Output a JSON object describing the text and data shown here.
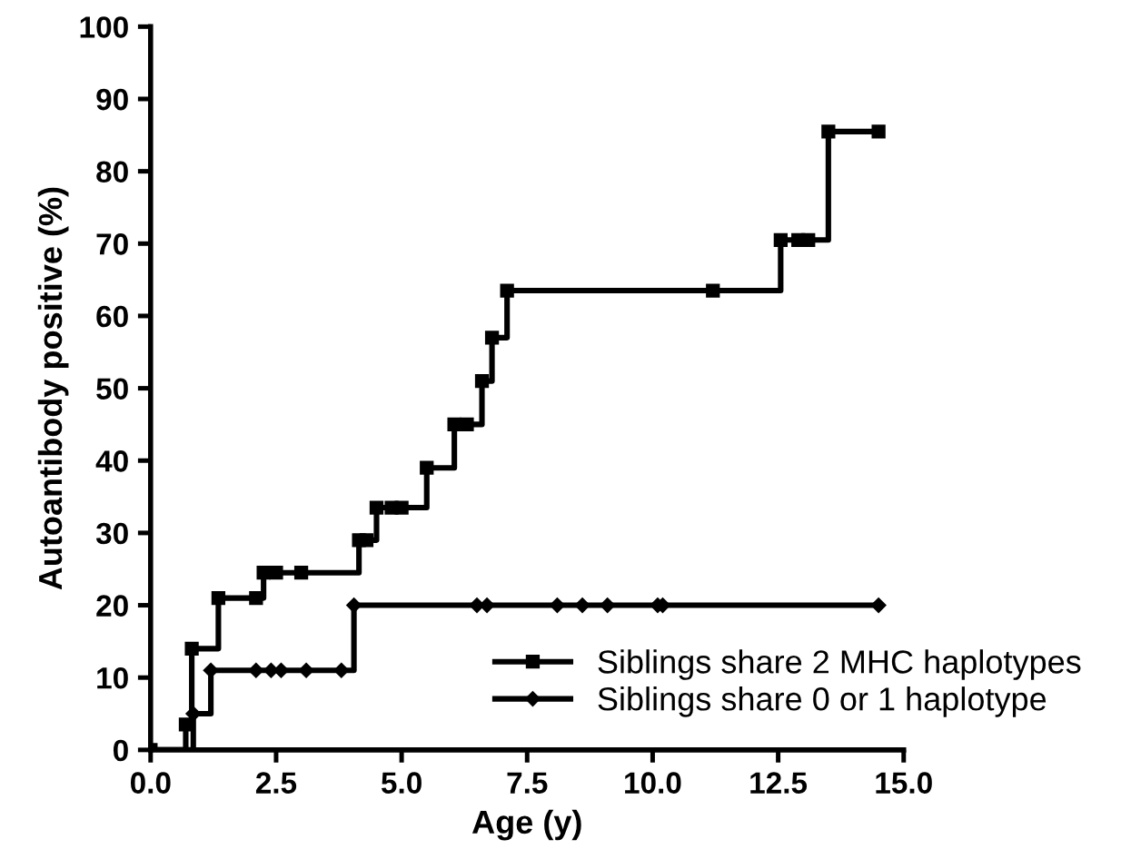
{
  "chart_data": {
    "type": "step",
    "xlabel": "Age (y)",
    "ylabel": "Autoantibody positive (%)",
    "xlim": [
      0,
      15
    ],
    "ylim": [
      0,
      100
    ],
    "xticks": [
      {
        "value": 0,
        "label": "0.0"
      },
      {
        "value": 2.5,
        "label": "2.5"
      },
      {
        "value": 5,
        "label": "5.0"
      },
      {
        "value": 7.5,
        "label": "7.5"
      },
      {
        "value": 10,
        "label": "10.0"
      },
      {
        "value": 12.5,
        "label": "12.5"
      },
      {
        "value": 15,
        "label": "15.0"
      }
    ],
    "yticks": [
      0,
      10,
      20,
      30,
      40,
      50,
      60,
      70,
      80,
      90,
      100
    ],
    "grid": false,
    "legend": "bottom right",
    "line_style": "solid",
    "series": [
      {
        "name": "Siblings share 2 MHC haplotypes",
        "color": "#000000",
        "marker": "square",
        "x": [
          0,
          0.7,
          0.82,
          1.35,
          2.1,
          2.25,
          2.5,
          3.0,
          4.15,
          4.3,
          4.5,
          4.8,
          5.0,
          5.5,
          6.05,
          6.3,
          6.6,
          6.8,
          7.1,
          11.2,
          12.55,
          12.9,
          13.1,
          13.5,
          14.5
        ],
        "values": [
          0,
          3.5,
          14,
          21,
          21,
          24.5,
          24.5,
          24.5,
          29,
          29,
          33.5,
          33.5,
          33.5,
          39,
          45,
          45,
          51,
          57,
          63.5,
          63.5,
          70.5,
          70.5,
          70.5,
          85.5,
          85.5
        ]
      },
      {
        "name": "Siblings share 0 or 1 haplotype",
        "color": "#000000",
        "marker": "diamond",
        "x": [
          0,
          0.85,
          1.2,
          2.1,
          2.4,
          2.6,
          3.1,
          3.8,
          4.05,
          6.5,
          6.7,
          8.1,
          8.6,
          9.1,
          10.1,
          10.2,
          14.5
        ],
        "values": [
          0,
          5,
          11,
          11,
          11,
          11,
          11,
          11,
          20,
          20,
          20,
          20,
          20,
          20,
          20,
          20,
          20
        ]
      }
    ]
  }
}
